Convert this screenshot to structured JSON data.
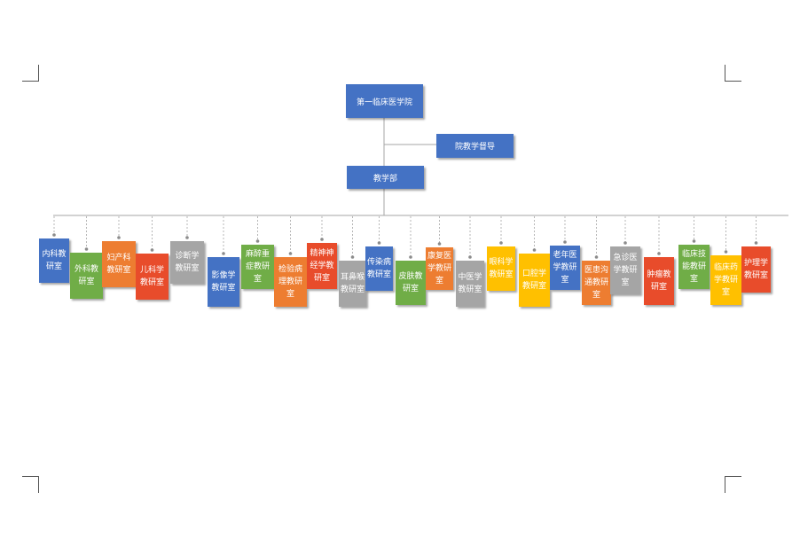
{
  "root": {
    "label": "第一临床医学院"
  },
  "advisor": {
    "label": "院教学督导"
  },
  "dept": {
    "label": "教学部"
  },
  "colors": {
    "blue": "#4472c4",
    "green": "#70ad47",
    "orange": "#ed7d31",
    "red": "#e84c2b",
    "gray": "#a5a5a5",
    "yellow": "#ffc000",
    "line": "#a6a6a6",
    "dot": "#8c8c8c"
  },
  "units": [
    {
      "label": "内科教研室",
      "color": "blue"
    },
    {
      "label": "外科教研室",
      "color": "green"
    },
    {
      "label": "妇产科教研室",
      "color": "orange"
    },
    {
      "label": "儿科学教研室",
      "color": "red"
    },
    {
      "label": "诊断学教研室",
      "color": "gray"
    },
    {
      "label": "影像学教研室",
      "color": "blue"
    },
    {
      "label": "麻醉重症教研室",
      "color": "green"
    },
    {
      "label": "检验病理教研室",
      "color": "orange"
    },
    {
      "label": "精神神经学教研室",
      "color": "red"
    },
    {
      "label": "耳鼻喉教研室",
      "color": "gray"
    },
    {
      "label": "传染病教研室",
      "color": "blue"
    },
    {
      "label": "皮肤教研室",
      "color": "green"
    },
    {
      "label": "康复医学教研室",
      "color": "orange"
    },
    {
      "label": "中医学教研室",
      "color": "gray"
    },
    {
      "label": "眼科学教研室",
      "color": "yellow"
    },
    {
      "label": "口腔学教研室",
      "color": "yellow"
    },
    {
      "label": "老年医学教研室",
      "color": "blue"
    },
    {
      "label": "医患沟通教研室",
      "color": "orange"
    },
    {
      "label": "急诊医学教研室",
      "color": "gray"
    },
    {
      "label": "肿瘤教研室",
      "color": "red"
    },
    {
      "label": "临床技能教研室",
      "color": "green"
    },
    {
      "label": "临床药学教研室",
      "color": "yellow"
    },
    {
      "label": "护理学教研室",
      "color": "red"
    }
  ]
}
